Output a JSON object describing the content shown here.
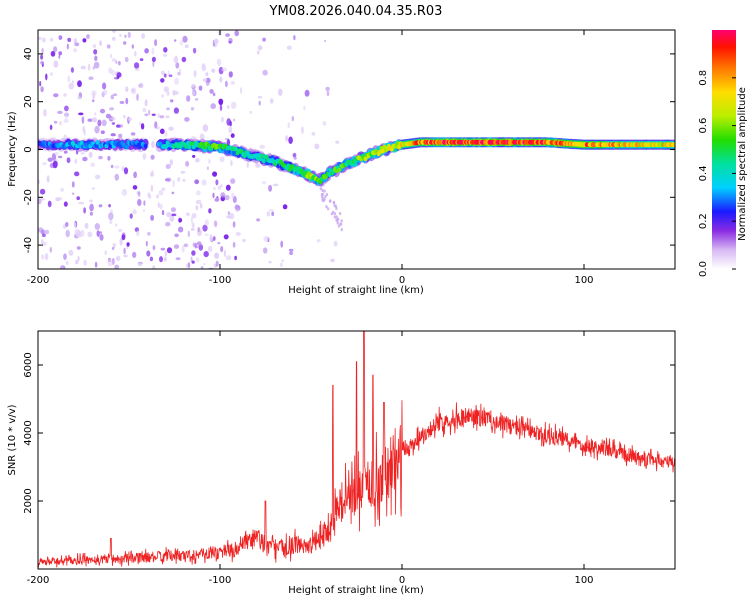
{
  "chart_data": [
    {
      "type": "heatmap",
      "title": "YM08.2026.040.04.35.R03",
      "xlabel": "Height of straight line (km)",
      "ylabel": "Frequency (Hz)",
      "xlim": [
        -200,
        150
      ],
      "ylim": [
        -50,
        50
      ],
      "x_ticks": [
        -200,
        -100,
        0,
        100
      ],
      "x_tick_labels": [
        "-200",
        "-100",
        "0",
        "100"
      ],
      "y_ticks": [
        -40,
        -20,
        0,
        20,
        40
      ],
      "y_tick_labels": [
        "-40",
        "-20",
        "0",
        "20",
        "40"
      ],
      "colorbar": {
        "label": "Normalized spectral amplitude",
        "range": [
          0,
          1
        ],
        "ticks": [
          0,
          0.2,
          0.4,
          0.6,
          0.8
        ],
        "tick_labels": [
          "0.0",
          "0.2",
          "0.4",
          "0.6",
          "0.8"
        ]
      },
      "ridge": {
        "x": [
          -200,
          -180,
          -160,
          -140,
          -120,
          -100,
          -90,
          -80,
          -70,
          -60,
          -50,
          -45,
          -40,
          -35,
          -30,
          -20,
          -10,
          0,
          10,
          20,
          40,
          60,
          80,
          100,
          120,
          150
        ],
        "frequency": [
          2,
          2,
          2,
          2,
          2,
          1,
          -1,
          -3,
          -5,
          -8,
          -11,
          -13,
          -10,
          -8,
          -6,
          -3,
          0,
          2,
          3,
          3,
          3,
          3,
          3,
          2,
          2,
          2
        ],
        "amplitude": [
          0.25,
          0.35,
          0.3,
          0.3,
          0.45,
          0.55,
          0.45,
          0.4,
          0.45,
          0.5,
          0.6,
          0.55,
          0.5,
          0.55,
          0.5,
          0.6,
          0.65,
          0.7,
          0.85,
          0.95,
          0.95,
          0.95,
          0.9,
          0.85,
          0.75,
          0.7
        ]
      }
    },
    {
      "type": "line",
      "xlabel": "Height of straight line (km)",
      "ylabel": "SNR (10 * v/v)",
      "xlim": [
        -200,
        150
      ],
      "ylim": [
        0,
        7000
      ],
      "x_ticks": [
        -200,
        -100,
        0,
        100
      ],
      "x_tick_labels": [
        "-200",
        "-100",
        "0",
        "100"
      ],
      "y_ticks": [
        2000,
        4000,
        6000
      ],
      "y_tick_labels": [
        "2000",
        "4000",
        "6000"
      ],
      "color": "#ee2222",
      "series": [
        {
          "name": "SNR",
          "x": [
            -200,
            -180,
            -160,
            -140,
            -120,
            -100,
            -90,
            -80,
            -70,
            -60,
            -50,
            -45,
            -40,
            -35,
            -30,
            -25,
            -20,
            -15,
            -10,
            -5,
            0,
            10,
            20,
            30,
            40,
            50,
            60,
            70,
            80,
            90,
            100,
            110,
            120,
            130,
            140,
            150
          ],
          "values": [
            200,
            250,
            300,
            350,
            400,
            500,
            600,
            900,
            600,
            700,
            700,
            900,
            1200,
            1900,
            2100,
            2200,
            2400,
            2600,
            2700,
            2900,
            3400,
            3900,
            4300,
            4450,
            4500,
            4350,
            4200,
            4050,
            3900,
            3800,
            3650,
            3550,
            3400,
            3300,
            3200,
            3100
          ]
        }
      ],
      "peaks": {
        "x": [
          -160,
          -75,
          -38,
          -25,
          -21,
          -16,
          -10
        ],
        "values": [
          900,
          2000,
          5400,
          6100,
          7000,
          5700,
          4900
        ]
      }
    }
  ]
}
